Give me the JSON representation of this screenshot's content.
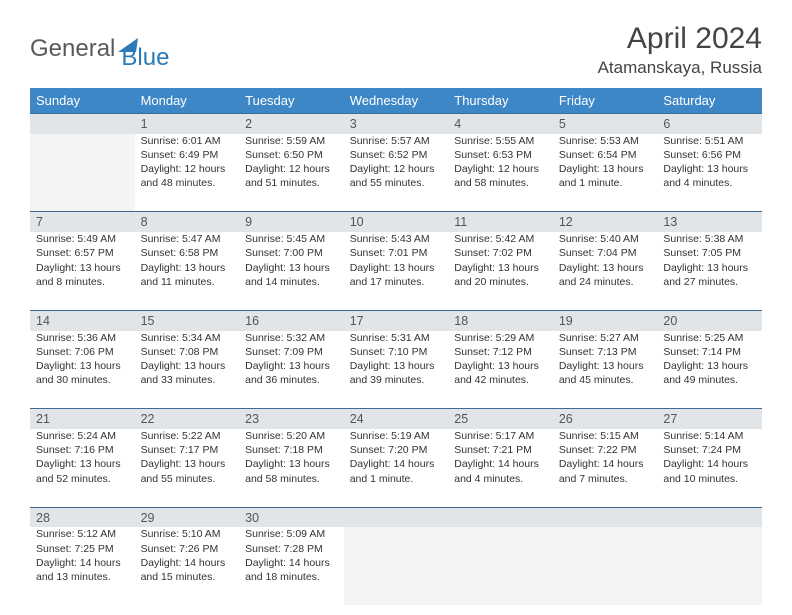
{
  "brand": {
    "part1": "General",
    "part2": "Blue"
  },
  "title": "April 2024",
  "location": "Atamanskaya, Russia",
  "day_headers": [
    "Sunday",
    "Monday",
    "Tuesday",
    "Wednesday",
    "Thursday",
    "Friday",
    "Saturday"
  ],
  "weeks": [
    {
      "nums": [
        "",
        "1",
        "2",
        "3",
        "4",
        "5",
        "6"
      ],
      "cells": [
        "",
        "Sunrise: 6:01 AM\nSunset: 6:49 PM\nDaylight: 12 hours and 48 minutes.",
        "Sunrise: 5:59 AM\nSunset: 6:50 PM\nDaylight: 12 hours and 51 minutes.",
        "Sunrise: 5:57 AM\nSunset: 6:52 PM\nDaylight: 12 hours and 55 minutes.",
        "Sunrise: 5:55 AM\nSunset: 6:53 PM\nDaylight: 12 hours and 58 minutes.",
        "Sunrise: 5:53 AM\nSunset: 6:54 PM\nDaylight: 13 hours and 1 minute.",
        "Sunrise: 5:51 AM\nSunset: 6:56 PM\nDaylight: 13 hours and 4 minutes."
      ]
    },
    {
      "nums": [
        "7",
        "8",
        "9",
        "10",
        "11",
        "12",
        "13"
      ],
      "cells": [
        "Sunrise: 5:49 AM\nSunset: 6:57 PM\nDaylight: 13 hours and 8 minutes.",
        "Sunrise: 5:47 AM\nSunset: 6:58 PM\nDaylight: 13 hours and 11 minutes.",
        "Sunrise: 5:45 AM\nSunset: 7:00 PM\nDaylight: 13 hours and 14 minutes.",
        "Sunrise: 5:43 AM\nSunset: 7:01 PM\nDaylight: 13 hours and 17 minutes.",
        "Sunrise: 5:42 AM\nSunset: 7:02 PM\nDaylight: 13 hours and 20 minutes.",
        "Sunrise: 5:40 AM\nSunset: 7:04 PM\nDaylight: 13 hours and 24 minutes.",
        "Sunrise: 5:38 AM\nSunset: 7:05 PM\nDaylight: 13 hours and 27 minutes."
      ]
    },
    {
      "nums": [
        "14",
        "15",
        "16",
        "17",
        "18",
        "19",
        "20"
      ],
      "cells": [
        "Sunrise: 5:36 AM\nSunset: 7:06 PM\nDaylight: 13 hours and 30 minutes.",
        "Sunrise: 5:34 AM\nSunset: 7:08 PM\nDaylight: 13 hours and 33 minutes.",
        "Sunrise: 5:32 AM\nSunset: 7:09 PM\nDaylight: 13 hours and 36 minutes.",
        "Sunrise: 5:31 AM\nSunset: 7:10 PM\nDaylight: 13 hours and 39 minutes.",
        "Sunrise: 5:29 AM\nSunset: 7:12 PM\nDaylight: 13 hours and 42 minutes.",
        "Sunrise: 5:27 AM\nSunset: 7:13 PM\nDaylight: 13 hours and 45 minutes.",
        "Sunrise: 5:25 AM\nSunset: 7:14 PM\nDaylight: 13 hours and 49 minutes."
      ]
    },
    {
      "nums": [
        "21",
        "22",
        "23",
        "24",
        "25",
        "26",
        "27"
      ],
      "cells": [
        "Sunrise: 5:24 AM\nSunset: 7:16 PM\nDaylight: 13 hours and 52 minutes.",
        "Sunrise: 5:22 AM\nSunset: 7:17 PM\nDaylight: 13 hours and 55 minutes.",
        "Sunrise: 5:20 AM\nSunset: 7:18 PM\nDaylight: 13 hours and 58 minutes.",
        "Sunrise: 5:19 AM\nSunset: 7:20 PM\nDaylight: 14 hours and 1 minute.",
        "Sunrise: 5:17 AM\nSunset: 7:21 PM\nDaylight: 14 hours and 4 minutes.",
        "Sunrise: 5:15 AM\nSunset: 7:22 PM\nDaylight: 14 hours and 7 minutes.",
        "Sunrise: 5:14 AM\nSunset: 7:24 PM\nDaylight: 14 hours and 10 minutes."
      ]
    },
    {
      "nums": [
        "28",
        "29",
        "30",
        "",
        "",
        "",
        ""
      ],
      "cells": [
        "Sunrise: 5:12 AM\nSunset: 7:25 PM\nDaylight: 14 hours and 13 minutes.",
        "Sunrise: 5:10 AM\nSunset: 7:26 PM\nDaylight: 14 hours and 15 minutes.",
        "Sunrise: 5:09 AM\nSunset: 7:28 PM\nDaylight: 14 hours and 18 minutes.",
        "",
        "",
        "",
        ""
      ]
    }
  ]
}
